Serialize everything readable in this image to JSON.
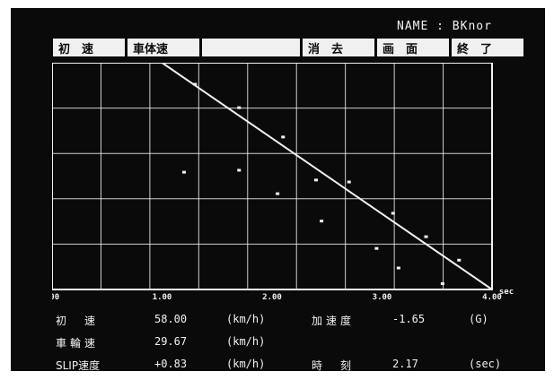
{
  "name_label": "NAME : BKnor",
  "menu": {
    "initial_speed": "初　速",
    "body_speed": "車体速",
    "erase": "消　去",
    "screen": "画　面",
    "end": "終　了"
  },
  "colors": {
    "screen_background": "#0a0a0a",
    "foreground": "#f2f2f2"
  },
  "chart_data": {
    "type": "scatter",
    "x_unit": "sec",
    "xlim": [
      0.0,
      4.0
    ],
    "x_ticks": [
      ".00",
      "1.00",
      "2.00",
      "3.00",
      "4.00"
    ],
    "grid": true,
    "series": [
      {
        "kind": "line",
        "points": [
          [
            1.0,
            58.0
          ],
          [
            4.0,
            0.0
          ]
        ]
      },
      {
        "kind": "points",
        "points": [
          [
            1.3,
            52.5
          ],
          [
            1.7,
            46.5
          ],
          [
            2.1,
            39.0
          ],
          [
            2.7,
            27.5
          ],
          [
            3.1,
            19.5
          ],
          [
            3.4,
            13.5
          ],
          [
            3.7,
            7.5
          ],
          [
            1.2,
            30.0
          ],
          [
            1.7,
            30.5
          ],
          [
            2.05,
            24.5
          ],
          [
            2.45,
            17.5
          ],
          [
            2.95,
            10.5
          ],
          [
            3.15,
            5.5
          ],
          [
            3.55,
            1.5
          ],
          [
            2.4,
            28.0
          ]
        ]
      }
    ]
  },
  "info": {
    "initial_speed_label": "初　速",
    "initial_speed_value": "58.00",
    "initial_speed_unit": "(km/h)",
    "accel_label": "加速度",
    "accel_value": "-1.65",
    "accel_unit": "(G)",
    "wheel_speed_label": "車輪速",
    "wheel_speed_value": "29.67",
    "wheel_speed_unit": "(km/h)",
    "slip_label": "SLIP速度",
    "slip_value": "+0.83",
    "slip_unit": "(km/h)",
    "time_label": "時　刻",
    "time_value": "2.17",
    "time_unit": "(sec)"
  }
}
